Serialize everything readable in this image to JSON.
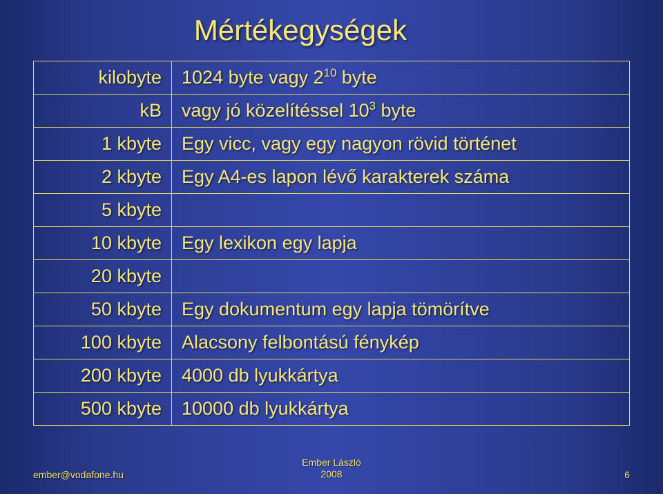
{
  "title": "Mértékegységek",
  "rows": [
    {
      "left": "kilobyte",
      "right_pre": "1024 byte vagy 2",
      "right_sup": "10",
      "right_post": " byte"
    },
    {
      "left": "kB",
      "right_pre": "vagy jó közelítéssel 10",
      "right_sup": "3",
      "right_post": " byte"
    },
    {
      "left": "1 kbyte",
      "right_pre": "Egy vicc, vagy egy nagyon rövid történet",
      "right_sup": "",
      "right_post": ""
    },
    {
      "left": "2 kbyte",
      "right_pre": "Egy A4-es lapon lévő karakterek száma",
      "right_sup": "",
      "right_post": ""
    },
    {
      "left": "5 kbyte",
      "right_pre": "",
      "right_sup": "",
      "right_post": ""
    },
    {
      "left": "10 kbyte",
      "right_pre": "Egy lexikon egy lapja",
      "right_sup": "",
      "right_post": ""
    },
    {
      "left": "20 kbyte",
      "right_pre": "",
      "right_sup": "",
      "right_post": ""
    },
    {
      "left": "50 kbyte",
      "right_pre": "Egy dokumentum egy lapja tömörítve",
      "right_sup": "",
      "right_post": ""
    },
    {
      "left": "100 kbyte",
      "right_pre": "Alacsony felbontású fénykép",
      "right_sup": "",
      "right_post": ""
    },
    {
      "left": "200 kbyte",
      "right_pre": "4000 db lyukkártya",
      "right_sup": "",
      "right_post": ""
    },
    {
      "left": "500 kbyte",
      "right_pre": "10000 db lyukkártya",
      "right_sup": "",
      "right_post": ""
    }
  ],
  "footer": {
    "email": "ember@vodafone.hu",
    "author_line1": "Ember László",
    "author_line2": "2008",
    "page": "6"
  },
  "colors": {
    "text": "#f7e678",
    "border": "#e6d85a",
    "bg_gradient_edge": "#1a2a6c",
    "bg_gradient_mid": "#3548aa"
  }
}
